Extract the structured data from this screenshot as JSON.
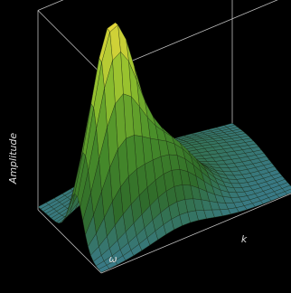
{
  "chart_data": {
    "type": "surface",
    "zlabel": "Amplitude",
    "xlabel": "ω",
    "ylabel": "k",
    "grid_rows": 24,
    "grid_cols": 24,
    "surface_peaks": [
      {
        "x": 0.6,
        "y": 0.18,
        "height": 1.0,
        "spread": 0.11
      },
      {
        "x": 0.72,
        "y": 0.42,
        "height": 0.36,
        "spread": 0.15
      },
      {
        "x": 0.3,
        "y": 0.55,
        "height": 0.14,
        "spread": 0.3
      }
    ],
    "colormap": [
      "#3d7fa8",
      "#2f6b2a",
      "#4a8f2a",
      "#8fbf2e",
      "#e6d83a"
    ],
    "box_edge_color": "#bdbdbd",
    "mesh_line_color": "#1c2a12"
  }
}
